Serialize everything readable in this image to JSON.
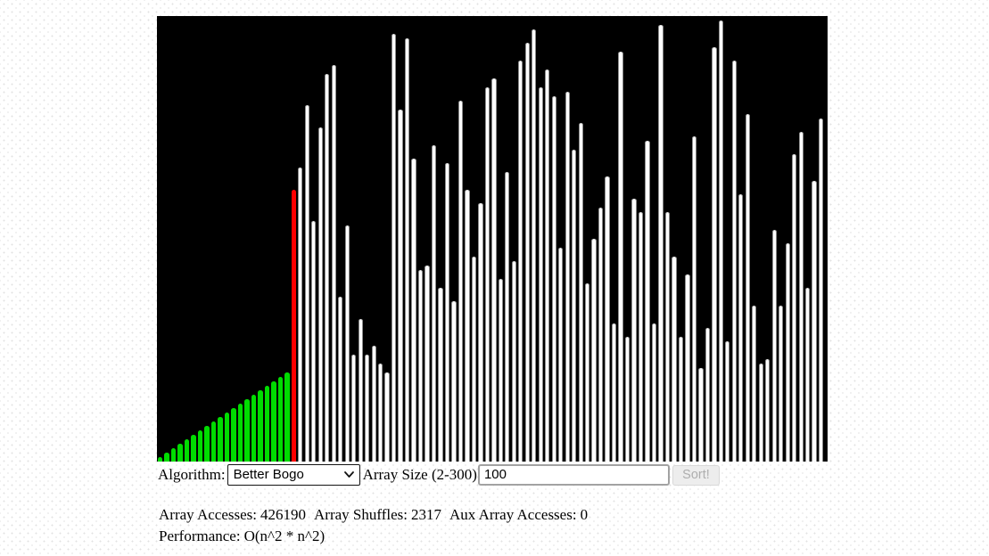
{
  "controls": {
    "algorithm_label": "Algorithm:",
    "algorithm_value": "Better Bogo",
    "array_size_label": "Array Size (2-300)",
    "array_size_value": "100",
    "sort_button_label": "Sort!",
    "sort_button_disabled": true
  },
  "stats": {
    "array_accesses_label": "Array Accesses:",
    "array_accesses": "426190",
    "array_shuffles_label": "Array Shuffles:",
    "array_shuffles": "2317",
    "aux_accesses_label": "Aux Array Accesses:",
    "aux_accesses": "0",
    "performance_label": "Performance:",
    "performance": "O(n^2 * n^2)"
  },
  "chart_data": {
    "type": "bar",
    "title": "Sorting visualizer array state (Better Bogo, n=100)",
    "bar_count": 100,
    "ylim": [
      0,
      100
    ],
    "background": "#000000",
    "sorted_prefix_count": 20,
    "highlight_index": 20,
    "colors": {
      "sorted": "#00dc00",
      "highlight": "#ff0000",
      "unsorted": "#ffffff"
    },
    "values": [
      1,
      2,
      3,
      4,
      5,
      6,
      7,
      8,
      9,
      10,
      11,
      12,
      13,
      14,
      15,
      16,
      17,
      18,
      19,
      20,
      61,
      66,
      80,
      54,
      75,
      87,
      89,
      37,
      53,
      24,
      32,
      24,
      26,
      22,
      20,
      96,
      79,
      95,
      68,
      43,
      44,
      71,
      39,
      67,
      36,
      81,
      61,
      46,
      58,
      84,
      86,
      41,
      65,
      45,
      90,
      94,
      97,
      84,
      88,
      82,
      48,
      83,
      70,
      76,
      40,
      50,
      57,
      64,
      31,
      92,
      28,
      59,
      56,
      72,
      31,
      98,
      56,
      46,
      28,
      42,
      73,
      21,
      30,
      93,
      99,
      27,
      90,
      60,
      78,
      35,
      22,
      23,
      52,
      35,
      49,
      69,
      74,
      39,
      63,
      77
    ]
  }
}
